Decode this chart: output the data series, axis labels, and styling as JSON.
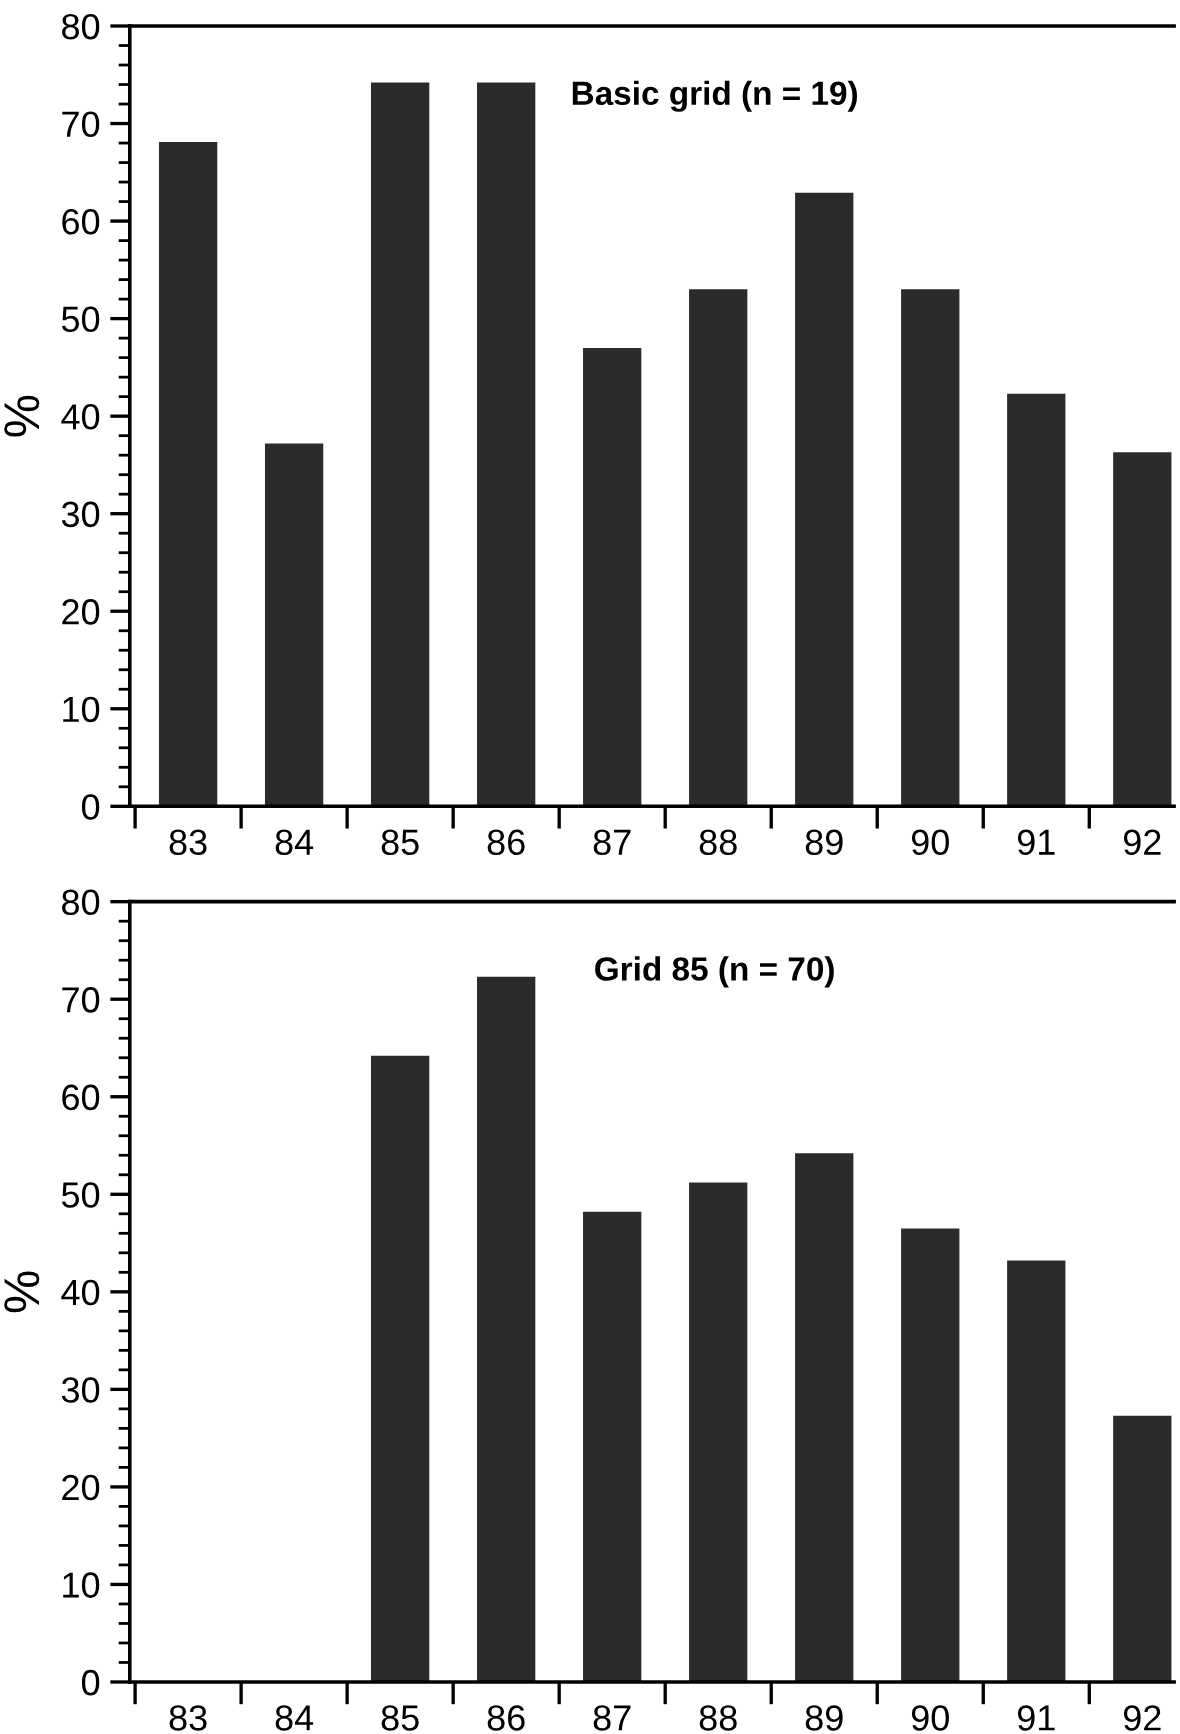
{
  "chart_data": [
    {
      "type": "bar",
      "title": "Basic grid (n = 19)",
      "ylabel": "%",
      "categories": [
        "83",
        "84",
        "85",
        "86",
        "87",
        "88",
        "89",
        "90",
        "91",
        "92"
      ],
      "values": [
        68.1,
        37.2,
        74.2,
        74.2,
        47.0,
        53.0,
        62.9,
        53.0,
        42.3,
        36.3
      ],
      "color": "#2a2c2b",
      "ylim": [
        0,
        80
      ],
      "yticks": [
        0,
        {
          "value": 2,
          "label": null
        },
        {
          "value": 4,
          "label": null
        },
        {
          "value": 6,
          "label": null
        },
        {
          "value": 8,
          "label": null
        },
        10,
        {
          "value": 12,
          "label": null
        },
        {
          "value": 14,
          "label": null
        },
        {
          "value": 16,
          "label": null
        },
        {
          "value": 18,
          "label": null
        },
        20,
        {
          "value": 22,
          "label": null
        },
        {
          "value": 24,
          "label": null
        },
        {
          "value": 26,
          "label": null
        },
        {
          "value": 28,
          "label": null
        },
        30,
        {
          "value": 32,
          "label": null
        },
        {
          "value": 34,
          "label": null
        },
        {
          "value": 36,
          "label": null
        },
        {
          "value": 38,
          "label": null
        },
        40,
        {
          "value": 42,
          "label": null
        },
        {
          "value": 44,
          "label": null
        },
        {
          "value": 46,
          "label": null
        },
        {
          "value": 48,
          "label": null
        },
        50,
        {
          "value": 52,
          "label": null
        },
        {
          "value": 54,
          "label": null
        },
        {
          "value": 56,
          "label": null
        },
        {
          "value": 58,
          "label": null
        },
        60,
        {
          "value": 62,
          "label": null
        },
        {
          "value": 64,
          "label": null
        },
        {
          "value": 66,
          "label": null
        },
        {
          "value": 68,
          "label": null
        },
        70,
        {
          "value": 72,
          "label": null
        },
        {
          "value": 74,
          "label": null
        },
        {
          "value": 76,
          "label": null
        },
        {
          "value": 78,
          "label": null
        },
        80
      ],
      "grid": false,
      "legend": false
    },
    {
      "type": "bar",
      "title": "Grid 85 (n = 70)",
      "ylabel": "%",
      "categories": [
        "83",
        "84",
        "85",
        "86",
        "87",
        "88",
        "89",
        "90",
        "91",
        "92"
      ],
      "values": [
        0,
        0,
        64.2,
        72.3,
        48.2,
        51.2,
        54.2,
        46.5,
        43.2,
        27.3
      ],
      "color": "#2a2c2b",
      "ylim": [
        0,
        80
      ],
      "yticks": [
        0,
        {
          "value": 2,
          "label": null
        },
        {
          "value": 4,
          "label": null
        },
        {
          "value": 6,
          "label": null
        },
        {
          "value": 8,
          "label": null
        },
        10,
        {
          "value": 12,
          "label": null
        },
        {
          "value": 14,
          "label": null
        },
        {
          "value": 16,
          "label": null
        },
        {
          "value": 18,
          "label": null
        },
        20,
        {
          "value": 22,
          "label": null
        },
        {
          "value": 24,
          "label": null
        },
        {
          "value": 26,
          "label": null
        },
        {
          "value": 28,
          "label": null
        },
        30,
        {
          "value": 32,
          "label": null
        },
        {
          "value": 34,
          "label": null
        },
        {
          "value": 36,
          "label": null
        },
        {
          "value": 38,
          "label": null
        },
        40,
        {
          "value": 42,
          "label": null
        },
        {
          "value": 44,
          "label": null
        },
        {
          "value": 46,
          "label": null
        },
        {
          "value": 48,
          "label": null
        },
        50,
        {
          "value": 52,
          "label": null
        },
        {
          "value": 54,
          "label": null
        },
        {
          "value": 56,
          "label": null
        },
        {
          "value": 58,
          "label": null
        },
        60,
        {
          "value": 62,
          "label": null
        },
        {
          "value": 64,
          "label": null
        },
        {
          "value": 66,
          "label": null
        },
        {
          "value": 68,
          "label": null
        },
        70,
        {
          "value": 72,
          "label": null
        },
        {
          "value": 74,
          "label": null
        },
        {
          "value": 76,
          "label": null
        },
        {
          "value": 78,
          "label": null
        },
        80
      ],
      "grid": false,
      "legend": false
    }
  ]
}
